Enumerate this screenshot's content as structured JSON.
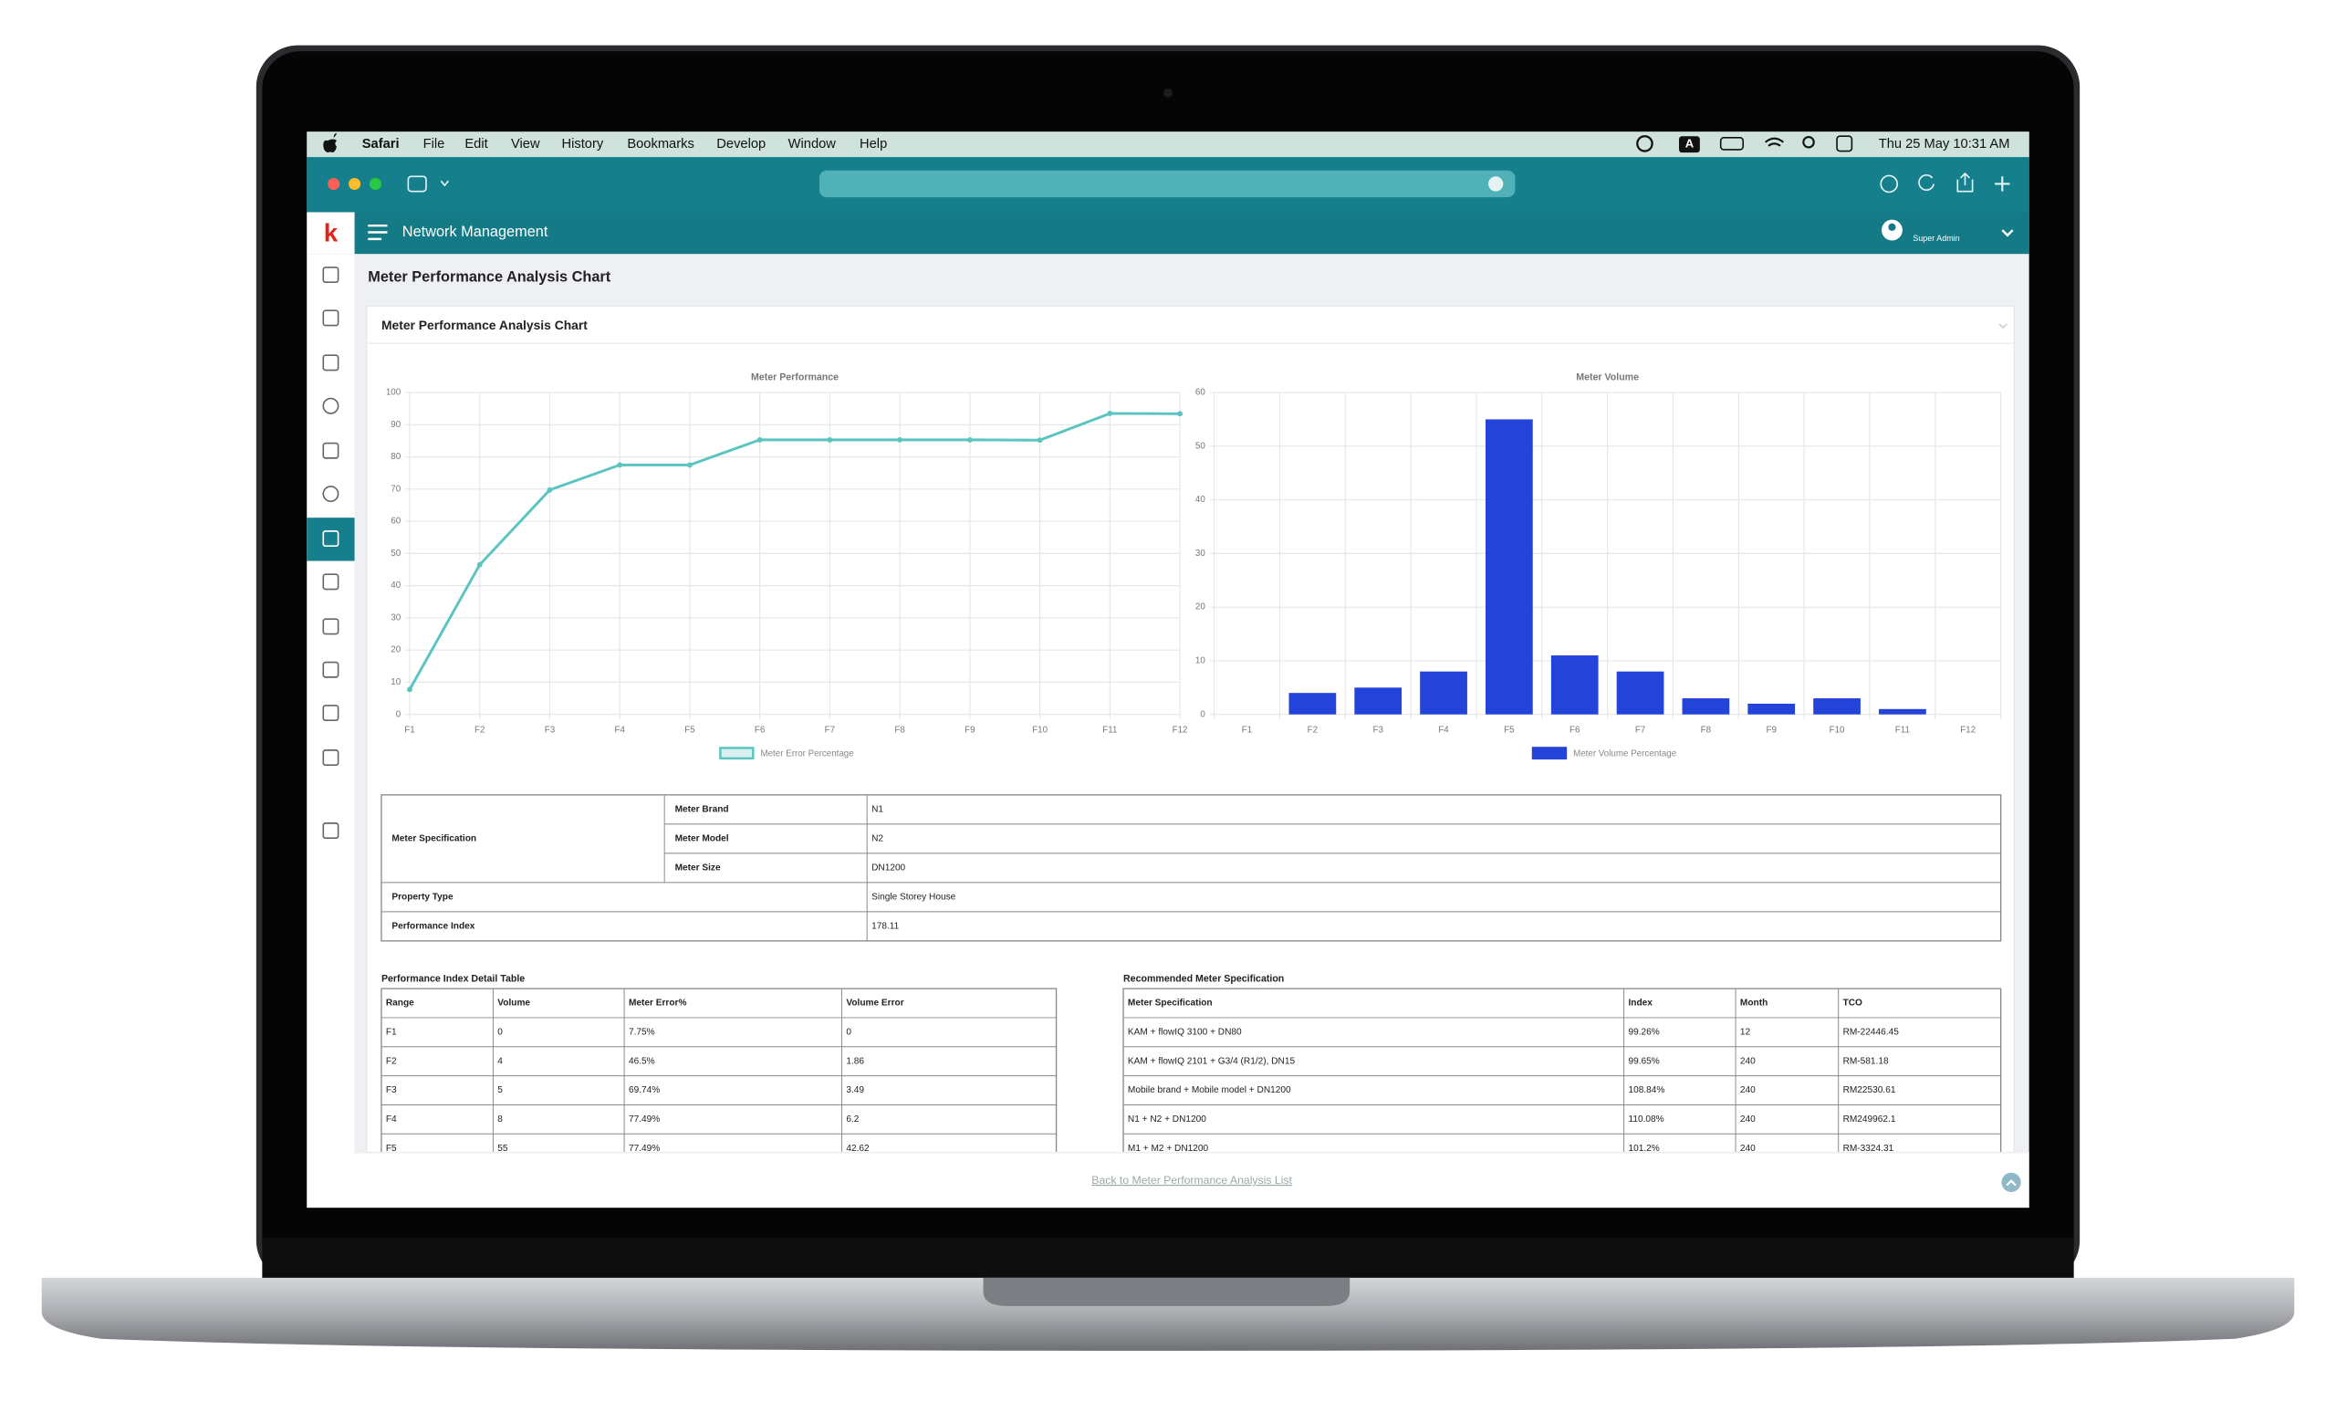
{
  "menu_bar": {
    "app": "Safari",
    "items": [
      "File",
      "Edit",
      "View",
      "History",
      "Bookmarks",
      "Develop",
      "Window",
      "Help"
    ],
    "input_source": "A",
    "clock": "Thu 25 May  10:31 AM"
  },
  "app_header": {
    "logo": "k",
    "title": "Network Management",
    "user": "Super Admin"
  },
  "page_title": "Meter Performance Analysis Chart",
  "card_title": "Meter Performance Analysis Chart",
  "chart_data": [
    {
      "type": "line",
      "title": "Meter Performance",
      "categories": [
        "F1",
        "F2",
        "F3",
        "F4",
        "F5",
        "F6",
        "F7",
        "F8",
        "F9",
        "F10",
        "F11",
        "F12"
      ],
      "series": [
        {
          "name": "Meter Error Percentage",
          "color": "#5bc4c0",
          "values": [
            7.75,
            46.5,
            69.74,
            77.49,
            77.49,
            85.3,
            85.3,
            85.3,
            85.3,
            85.2,
            93.5,
            93.4
          ]
        }
      ],
      "ylim": [
        0,
        100
      ],
      "yticks": [
        0,
        10,
        20,
        30,
        40,
        50,
        60,
        70,
        80,
        90,
        100
      ],
      "grid": true
    },
    {
      "type": "bar",
      "title": "Meter Volume",
      "categories": [
        "F1",
        "F2",
        "F3",
        "F4",
        "F5",
        "F6",
        "F7",
        "F8",
        "F9",
        "F10",
        "F11",
        "F12"
      ],
      "series": [
        {
          "name": "Meter Volume Percentage",
          "color": "#2443d9",
          "values": [
            0,
            4,
            5,
            8,
            55,
            11,
            8,
            3,
            2,
            3,
            1,
            0
          ]
        }
      ],
      "ylim": [
        0,
        60
      ],
      "yticks": [
        0,
        10,
        20,
        30,
        40,
        50,
        60
      ],
      "grid": true
    }
  ],
  "spec_table": {
    "group_label": "Meter Specification",
    "rows": [
      [
        "Meter Brand",
        "N1"
      ],
      [
        "Meter Model",
        "N2"
      ],
      [
        "Meter Size",
        "DN1200"
      ]
    ],
    "extra_rows": [
      [
        "Property Type",
        "Single Storey House"
      ],
      [
        "Performance Index",
        "178.11"
      ]
    ]
  },
  "detail_table": {
    "title": "Performance Index Detail Table",
    "headers": [
      "Range",
      "Volume",
      "Meter Error%",
      "Volume Error"
    ],
    "rows": [
      [
        "F1",
        "0",
        "7.75%",
        "0"
      ],
      [
        "F2",
        "4",
        "46.5%",
        "1.86"
      ],
      [
        "F3",
        "5",
        "69.74%",
        "3.49"
      ],
      [
        "F4",
        "8",
        "77.49%",
        "6.2"
      ],
      [
        "F5",
        "55",
        "77.49%",
        "42.62"
      ]
    ]
  },
  "recommended_table": {
    "title": "Recommended Meter Specification",
    "headers": [
      "Meter Specification",
      "Index",
      "Month",
      "TCO"
    ],
    "rows": [
      [
        "KAM + flowIQ 3100 + DN80",
        "99.26%",
        "12",
        "RM-22446.45"
      ],
      [
        "KAM + flowIQ 2101 + G3/4 (R1/2), DN15",
        "99.65%",
        "240",
        "RM-581.18"
      ],
      [
        "Mobile brand + Mobile model + DN1200",
        "108.84%",
        "240",
        "RM22530.61"
      ],
      [
        "N1 + N2 + DN1200",
        "110.08%",
        "240",
        "RM249962.1"
      ],
      [
        "M1 + M2 + DN1200",
        "101.2%",
        "240",
        "RM-3324.31"
      ]
    ]
  },
  "footer_link": "Back to Meter Performance Analysis List"
}
